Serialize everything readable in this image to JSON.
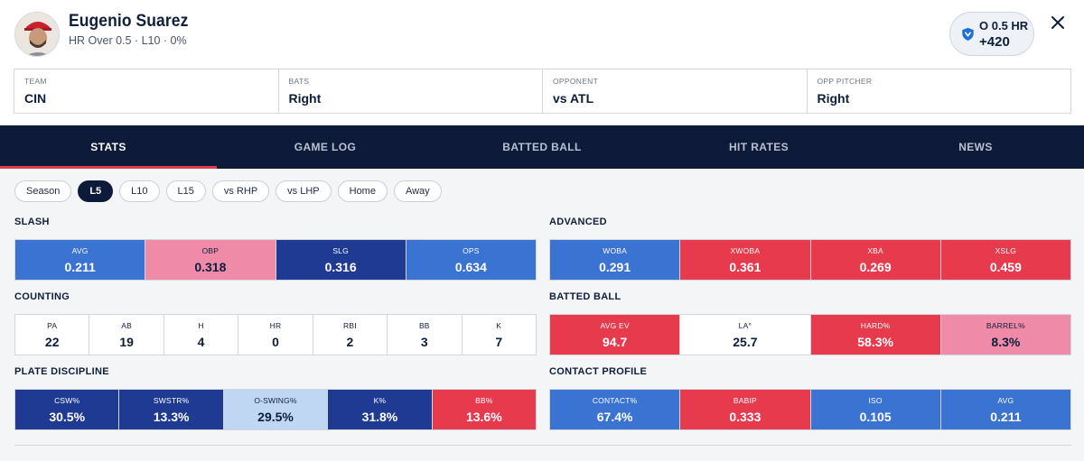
{
  "player": {
    "name": "Eugenio Suarez",
    "subtitle": "HR Over 0.5 · L10 · 0%"
  },
  "bet": {
    "line": "O 0.5 HR",
    "odds": "+420",
    "icon": "shield-icon",
    "brand_color": "#1f6fd6"
  },
  "info": [
    {
      "label": "TEAM",
      "value": "CIN"
    },
    {
      "label": "BATS",
      "value": "Right"
    },
    {
      "label": "OPPONENT",
      "value": "vs ATL"
    },
    {
      "label": "OPP PITCHER",
      "value": "Right"
    }
  ],
  "tabs": [
    {
      "label": "STATS",
      "active": true
    },
    {
      "label": "GAME LOG",
      "active": false
    },
    {
      "label": "BATTED BALL",
      "active": false
    },
    {
      "label": "HIT RATES",
      "active": false
    },
    {
      "label": "NEWS",
      "active": false
    }
  ],
  "filters": [
    {
      "label": "Season",
      "active": false
    },
    {
      "label": "L5",
      "active": true
    },
    {
      "label": "L10",
      "active": false
    },
    {
      "label": "L15",
      "active": false
    },
    {
      "label": "vs RHP",
      "active": false
    },
    {
      "label": "vs LHP",
      "active": false
    },
    {
      "label": "Home",
      "active": false
    },
    {
      "label": "Away",
      "active": false
    }
  ],
  "sections": {
    "slash": {
      "title": "SLASH",
      "stats": [
        {
          "label": "AVG",
          "value": "0.211",
          "color": "blue"
        },
        {
          "label": "OBP",
          "value": "0.318",
          "color": "pink"
        },
        {
          "label": "SLG",
          "value": "0.316",
          "color": "dblue"
        },
        {
          "label": "OPS",
          "value": "0.634",
          "color": "blue"
        }
      ]
    },
    "advanced": {
      "title": "ADVANCED",
      "stats": [
        {
          "label": "WOBA",
          "value": "0.291",
          "color": "blue"
        },
        {
          "label": "XWOBA",
          "value": "0.361",
          "color": "red"
        },
        {
          "label": "XBA",
          "value": "0.269",
          "color": "red"
        },
        {
          "label": "XSLG",
          "value": "0.459",
          "color": "red"
        }
      ]
    },
    "counting": {
      "title": "COUNTING",
      "stats": [
        {
          "label": "PA",
          "value": "22",
          "color": "white"
        },
        {
          "label": "AB",
          "value": "19",
          "color": "white"
        },
        {
          "label": "H",
          "value": "4",
          "color": "white"
        },
        {
          "label": "HR",
          "value": "0",
          "color": "white"
        },
        {
          "label": "RBI",
          "value": "2",
          "color": "white"
        },
        {
          "label": "BB",
          "value": "3",
          "color": "white"
        },
        {
          "label": "K",
          "value": "7",
          "color": "white"
        }
      ]
    },
    "batted_ball": {
      "title": "BATTED BALL",
      "stats": [
        {
          "label": "AVG EV",
          "value": "94.7",
          "color": "red"
        },
        {
          "label": "LA°",
          "value": "25.7",
          "color": "white"
        },
        {
          "label": "HARD%",
          "value": "58.3%",
          "color": "red"
        },
        {
          "label": "BARREL%",
          "value": "8.3%",
          "color": "pink"
        }
      ]
    },
    "plate_discipline": {
      "title": "PLATE DISCIPLINE",
      "stats": [
        {
          "label": "CSW%",
          "value": "30.5%",
          "color": "dblue"
        },
        {
          "label": "SWSTR%",
          "value": "13.3%",
          "color": "dblue"
        },
        {
          "label": "O-SWING%",
          "value": "29.5%",
          "color": "lblue"
        },
        {
          "label": "K%",
          "value": "31.8%",
          "color": "dblue"
        },
        {
          "label": "BB%",
          "value": "13.6%",
          "color": "red"
        }
      ]
    },
    "contact_profile": {
      "title": "CONTACT PROFILE",
      "stats": [
        {
          "label": "CONTACT%",
          "value": "67.4%",
          "color": "blue"
        },
        {
          "label": "BABIP",
          "value": "0.333",
          "color": "red"
        },
        {
          "label": "ISO",
          "value": "0.105",
          "color": "blue"
        },
        {
          "label": "AVG",
          "value": "0.211",
          "color": "blue"
        }
      ]
    }
  },
  "colors": {
    "navy": "#0d1a3a",
    "accent_red": "#e23a4d",
    "blue": "#3a73d1",
    "dark_blue": "#1f3a93",
    "light_blue": "#bfd7f3",
    "red": "#e83a4d",
    "pink": "#ef8aa9"
  }
}
